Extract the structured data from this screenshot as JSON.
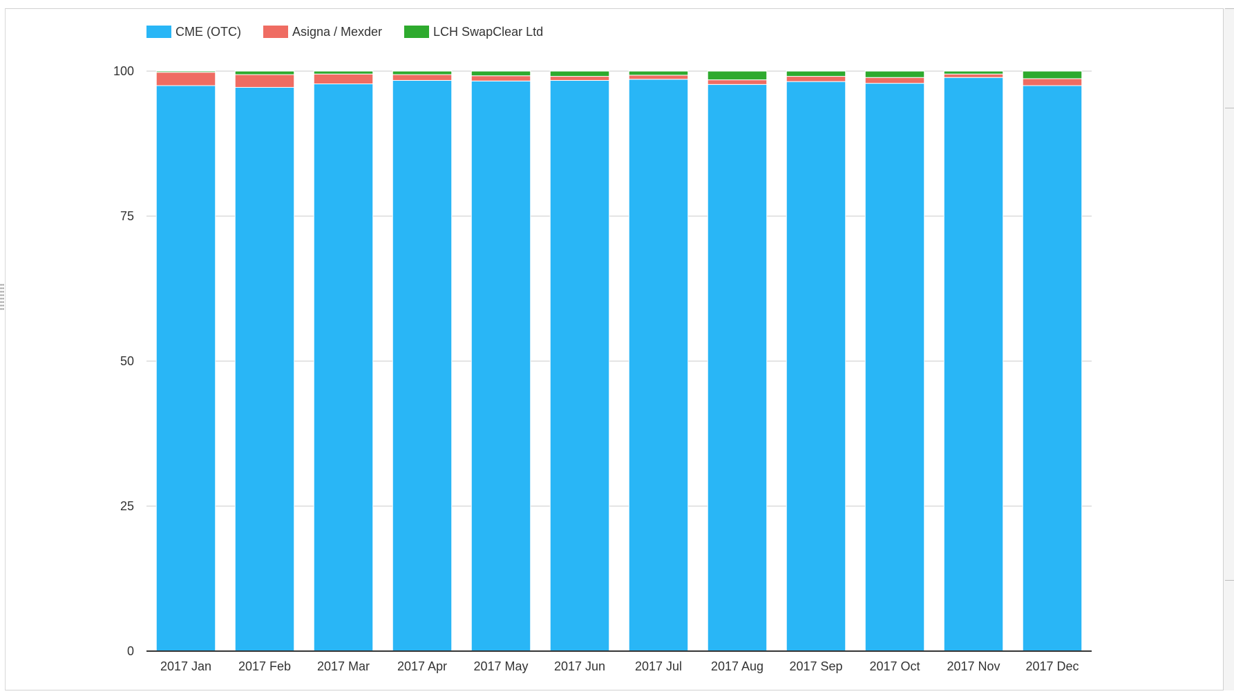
{
  "chart_data": {
    "type": "bar",
    "stacked": true,
    "title": "",
    "xlabel": "",
    "ylabel": "",
    "ylim": [
      0,
      100
    ],
    "yticks": [
      0,
      25,
      50,
      75,
      100
    ],
    "grid": true,
    "legend_position": "top-left",
    "categories": [
      "2017 Jan",
      "2017 Feb",
      "2017 Mar",
      "2017 Apr",
      "2017 May",
      "2017 Jun",
      "2017 Jul",
      "2017 Aug",
      "2017 Sep",
      "2017 Oct",
      "2017 Nov",
      "2017 Dec"
    ],
    "series": [
      {
        "name": "CME (OTC)",
        "color": "#29b6f6",
        "values": [
          97.5,
          97.2,
          97.8,
          98.4,
          98.3,
          98.4,
          98.6,
          97.7,
          98.2,
          97.9,
          98.9,
          97.5
        ]
      },
      {
        "name": "Asigna / Mexder",
        "color": "#ef6c62",
        "values": [
          2.3,
          2.2,
          1.7,
          1.0,
          0.9,
          0.7,
          0.7,
          0.8,
          0.9,
          1.0,
          0.6,
          1.2
        ]
      },
      {
        "name": "LCH SwapClear Ltd",
        "color": "#2eaa2e",
        "values": [
          0.2,
          0.6,
          0.5,
          0.6,
          0.8,
          0.9,
          0.7,
          1.5,
          0.9,
          1.1,
          0.5,
          1.3
        ]
      }
    ]
  }
}
